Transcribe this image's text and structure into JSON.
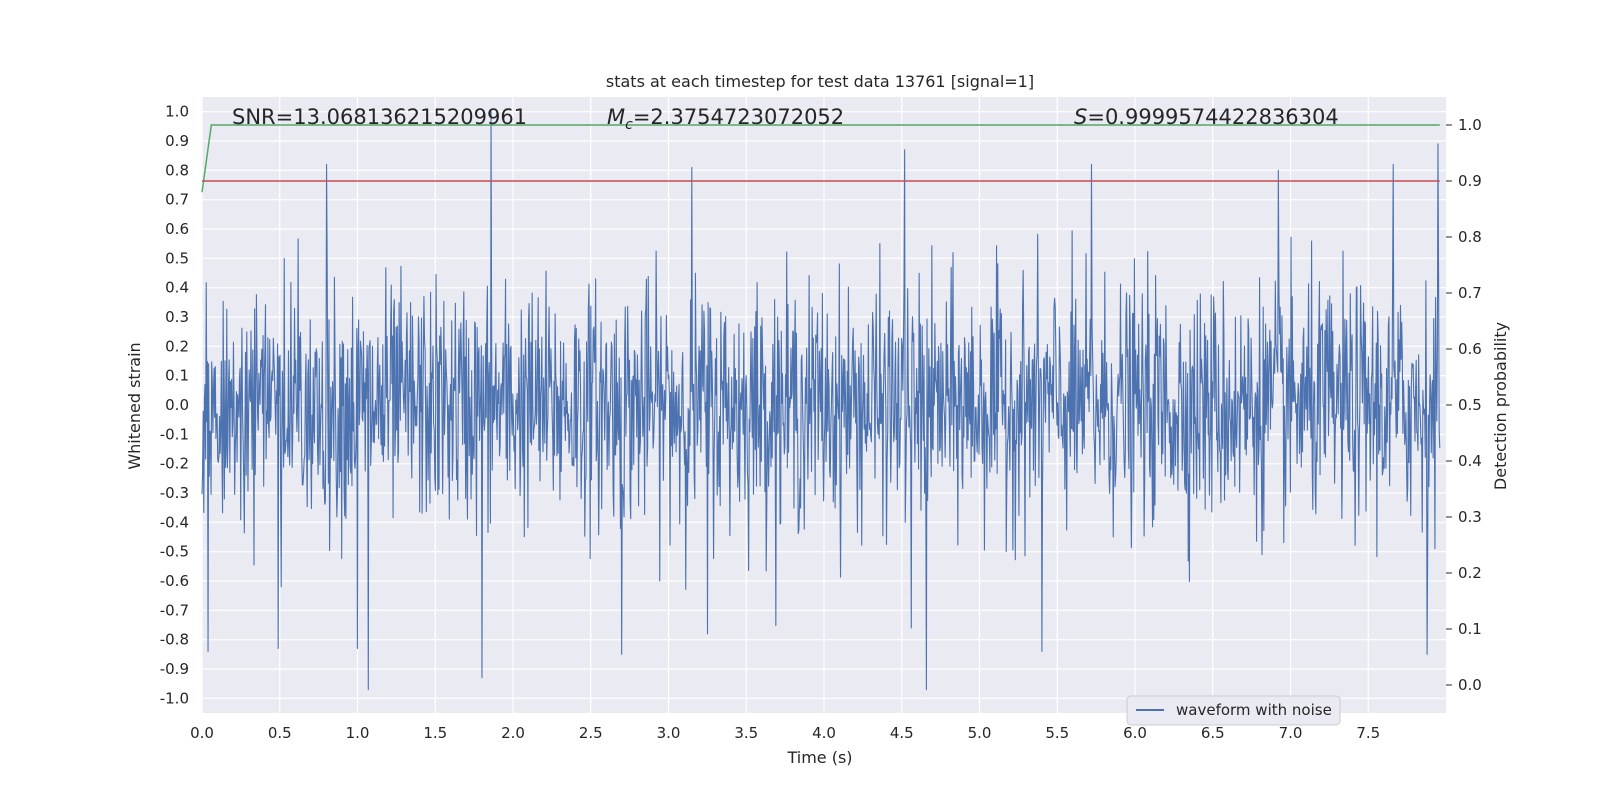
{
  "chart_data": {
    "type": "line",
    "title": "stats at each timestep for test data 13761 [signal=1]",
    "xlabel": "Time (s)",
    "ylabel": "Whitened strain",
    "y2label": "Detection probability",
    "xlim": [
      0.0,
      8.0
    ],
    "ylim": [
      -1.05,
      1.05
    ],
    "y2lim": [
      -0.05,
      1.05
    ],
    "xticks": [
      "0.0",
      "0.5",
      "1.0",
      "1.5",
      "2.0",
      "2.5",
      "3.0",
      "3.5",
      "4.0",
      "4.5",
      "5.0",
      "5.5",
      "6.0",
      "6.5",
      "7.0",
      "7.5"
    ],
    "yticks": [
      "1.0",
      "0.9",
      "0.8",
      "0.7",
      "0.6",
      "0.5",
      "0.4",
      "0.3",
      "0.2",
      "0.1",
      "0.0",
      "-0.1",
      "-0.2",
      "-0.3",
      "-0.4",
      "-0.5",
      "-0.6",
      "-0.7",
      "-0.8",
      "-0.9",
      "-1.0"
    ],
    "y2ticks": [
      "1.0",
      "0.9",
      "0.8",
      "0.7",
      "0.6",
      "0.5",
      "0.4",
      "0.3",
      "0.2",
      "0.1",
      "0.0"
    ],
    "grid": true,
    "legend": {
      "placement": "lower-right",
      "entries": [
        "waveform with noise"
      ]
    },
    "annotations": {
      "snr": "SNR=13.068136215209961",
      "mc_symbol": "M",
      "mc_subscript": "c",
      "mc_value": "=2.3754723072052",
      "s_symbol": "S",
      "s_value": "=0.9999574422836304"
    },
    "series": [
      {
        "name": "waveform with noise",
        "axis": "left",
        "color": "#4c72b0",
        "style": "dense noisy waveform",
        "sample_count": 2048,
        "amplitude_range": [
          -0.97,
          1.0
        ],
        "peaks": [
          {
            "x": 1.86,
            "y": 1.0
          },
          {
            "x": 7.95,
            "y": 0.89
          },
          {
            "x": 4.52,
            "y": 0.87
          },
          {
            "x": 7.66,
            "y": 0.82
          },
          {
            "x": 5.72,
            "y": 0.82
          },
          {
            "x": 0.8,
            "y": 0.82
          },
          {
            "x": 3.15,
            "y": 0.81
          },
          {
            "x": 6.92,
            "y": 0.8
          },
          {
            "x": 1.07,
            "y": -0.97
          },
          {
            "x": 4.66,
            "y": -0.97
          },
          {
            "x": 1.8,
            "y": -0.93
          },
          {
            "x": 7.88,
            "y": -0.85
          },
          {
            "x": 2.7,
            "y": -0.85
          },
          {
            "x": 0.04,
            "y": -0.84
          },
          {
            "x": 5.4,
            "y": -0.84
          },
          {
            "x": 0.49,
            "y": -0.83
          },
          {
            "x": 1.0,
            "y": -0.83
          },
          {
            "x": 4.56,
            "y": -0.76
          },
          {
            "x": 3.25,
            "y": -0.78
          }
        ]
      },
      {
        "name": "",
        "axis": "right",
        "color": "#55a868",
        "x": [
          0.0,
          0.06,
          7.96
        ],
        "values": [
          0.88,
          1.0,
          1.0
        ]
      },
      {
        "name": "",
        "axis": "right",
        "color": "#c44e52",
        "x": [
          0.0,
          7.96
        ],
        "values": [
          0.9,
          0.9
        ]
      }
    ]
  }
}
